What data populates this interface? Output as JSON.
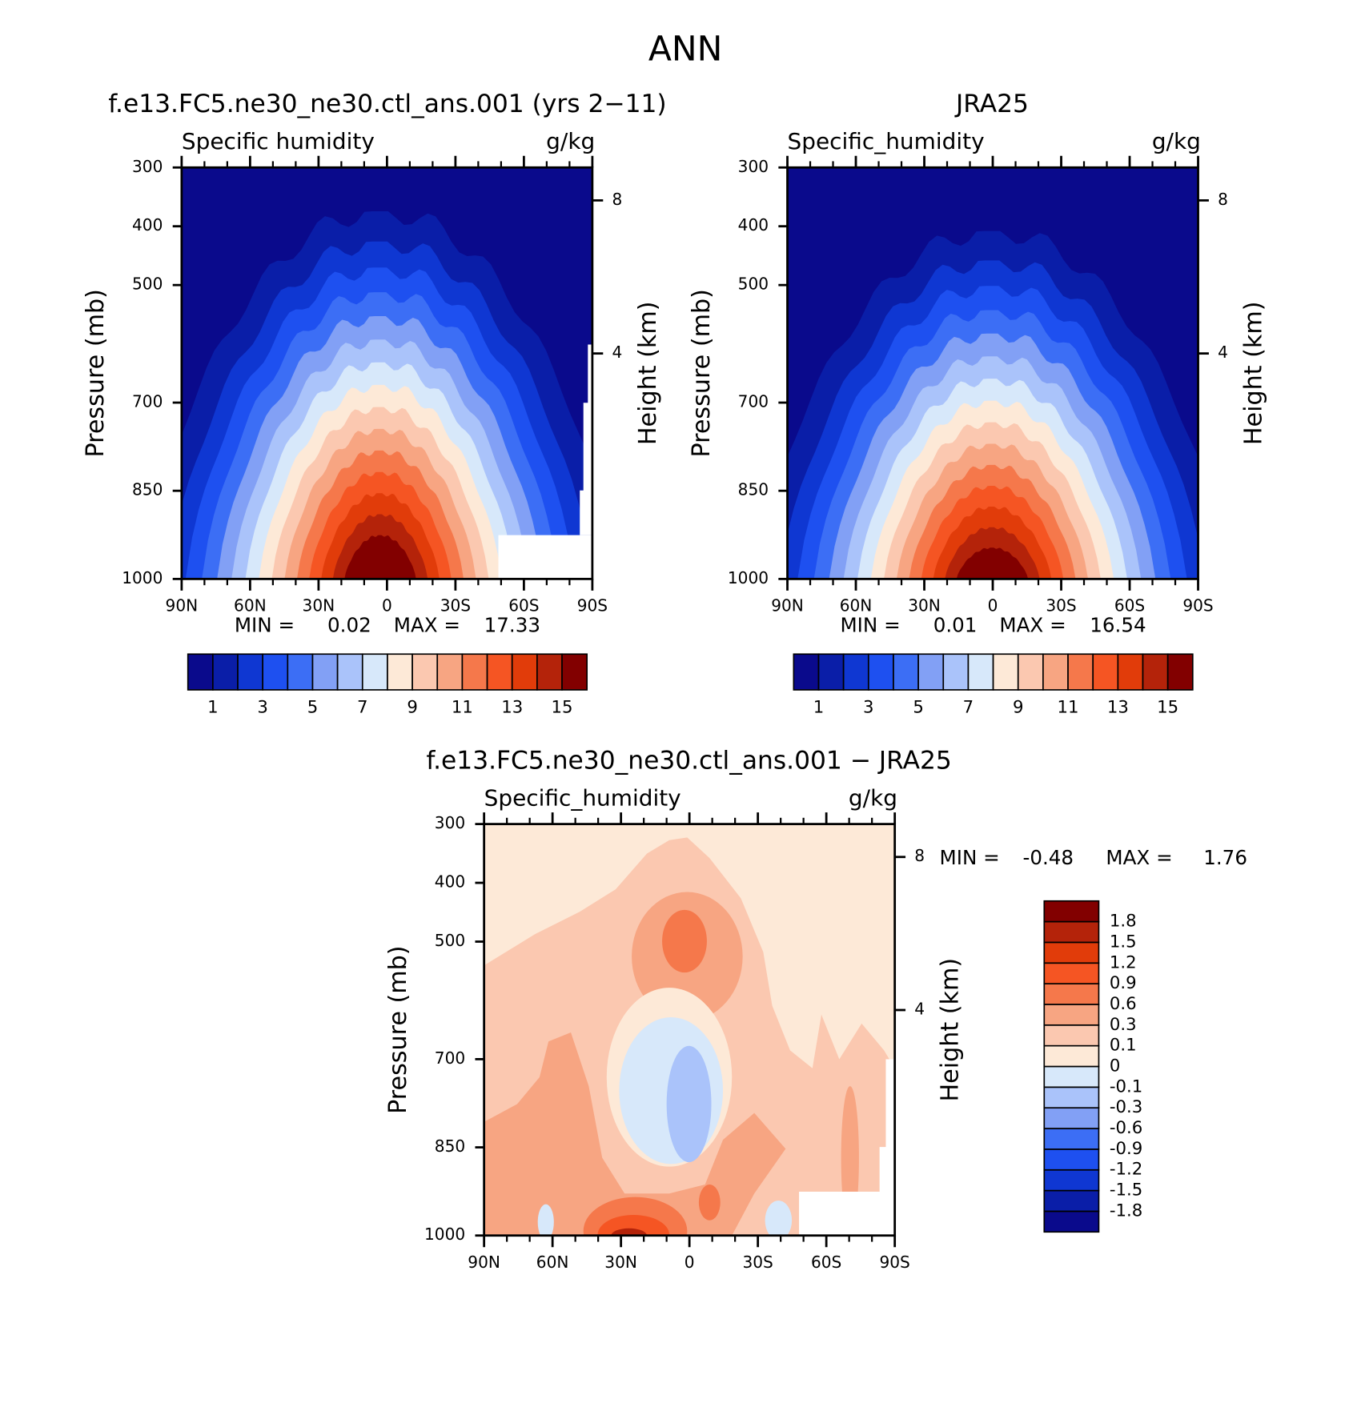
{
  "title": "ANN",
  "chart_data": [
    {
      "type": "contour",
      "title": "f.e13.FC5.ne30_ne30.ctl_ans.001 (yrs 2−11)",
      "left_label": "Specific humidity",
      "units": "g/kg",
      "ylabel": "Pressure (mb)",
      "y2label": "Height (km)",
      "xlim": [
        90,
        -90
      ],
      "xticks": [
        {
          "value": 90,
          "label": "90N"
        },
        {
          "value": 60,
          "label": "60N"
        },
        {
          "value": 30,
          "label": "30N"
        },
        0,
        {
          "value": -30,
          "label": "30S"
        },
        {
          "value": -60,
          "label": "60S"
        },
        {
          "value": -90,
          "label": "90S"
        }
      ],
      "ylim": [
        1000,
        300
      ],
      "yticks": [
        300,
        400,
        500,
        700,
        850,
        1000
      ],
      "y2ticks": [
        8,
        4
      ],
      "min_label": "MIN =",
      "min": 0.02,
      "max_label": "MAX =",
      "max": 17.33,
      "colorbar_orientation": "horizontal",
      "colorbar_label_step": 2,
      "levels": [
        1,
        2,
        3,
        4,
        5,
        6,
        7,
        8,
        9,
        10,
        11,
        12,
        13,
        14,
        15
      ],
      "colors": [
        "#0a0a8c",
        "#0a1ea8",
        "#0f37d2",
        "#1e50f0",
        "#3c6ef5",
        "#82a0f5",
        "#aac3fa",
        "#d7e8fa",
        "#fde9d7",
        "#fbc8b0",
        "#f7a582",
        "#f5784b",
        "#f55523",
        "#e13c0a",
        "#b4230a",
        "#820000"
      ]
    },
    {
      "type": "contour",
      "title": "JRA25",
      "left_label": "Specific_humidity",
      "units": "g/kg",
      "ylabel": "Pressure (mb)",
      "y2label": "Height (km)",
      "xlim": [
        90,
        -90
      ],
      "xticks": [
        {
          "value": 90,
          "label": "90N"
        },
        {
          "value": 60,
          "label": "60N"
        },
        {
          "value": 30,
          "label": "30N"
        },
        0,
        {
          "value": -30,
          "label": "30S"
        },
        {
          "value": -60,
          "label": "60S"
        },
        {
          "value": -90,
          "label": "90S"
        }
      ],
      "ylim": [
        1000,
        300
      ],
      "yticks": [
        300,
        400,
        500,
        700,
        850,
        1000
      ],
      "y2ticks": [
        8,
        4
      ],
      "min_label": "MIN =",
      "min": 0.01,
      "max_label": "MAX =",
      "max": 16.54,
      "colorbar_orientation": "horizontal",
      "colorbar_label_step": 2,
      "levels": [
        1,
        2,
        3,
        4,
        5,
        6,
        7,
        8,
        9,
        10,
        11,
        12,
        13,
        14,
        15
      ],
      "colors": [
        "#0a0a8c",
        "#0a1ea8",
        "#0f37d2",
        "#1e50f0",
        "#3c6ef5",
        "#82a0f5",
        "#aac3fa",
        "#d7e8fa",
        "#fde9d7",
        "#fbc8b0",
        "#f7a582",
        "#f5784b",
        "#f55523",
        "#e13c0a",
        "#b4230a",
        "#820000"
      ]
    },
    {
      "type": "difference",
      "title": "f.e13.FC5.ne30_ne30.ctl_ans.001 − JRA25",
      "left_label": "Specific_humidity",
      "units": "g/kg",
      "ylabel": "Pressure (mb)",
      "y2label": "Height (km)",
      "xlim": [
        90,
        -90
      ],
      "xticks": [
        {
          "value": 90,
          "label": "90N"
        },
        {
          "value": 60,
          "label": "60N"
        },
        {
          "value": 30,
          "label": "30N"
        },
        0,
        {
          "value": -30,
          "label": "30S"
        },
        {
          "value": -60,
          "label": "60S"
        },
        {
          "value": -90,
          "label": "90S"
        }
      ],
      "ylim": [
        1000,
        300
      ],
      "yticks": [
        300,
        400,
        500,
        700,
        850,
        1000
      ],
      "y2ticks": [
        8,
        4
      ],
      "min_label": "MIN =",
      "min": -0.48,
      "max_label": "MAX =",
      "max": 1.76,
      "colorbar_orientation": "vertical",
      "colorbar_label_step": 1,
      "levels": [
        -1.8,
        -1.5,
        -1.2,
        -0.9,
        -0.6,
        -0.3,
        -0.1,
        0,
        0.1,
        0.3,
        0.6,
        0.9,
        1.2,
        1.5,
        1.8
      ],
      "colors": [
        "#0a0a8c",
        "#0a1ea8",
        "#0f37d2",
        "#1e50f0",
        "#3c6ef5",
        "#82a0f5",
        "#aac3fa",
        "#d7e8fa",
        "#fde9d7",
        "#fbc8b0",
        "#f7a582",
        "#f5784b",
        "#f55523",
        "#e13c0a",
        "#b4230a",
        "#820000"
      ]
    }
  ]
}
